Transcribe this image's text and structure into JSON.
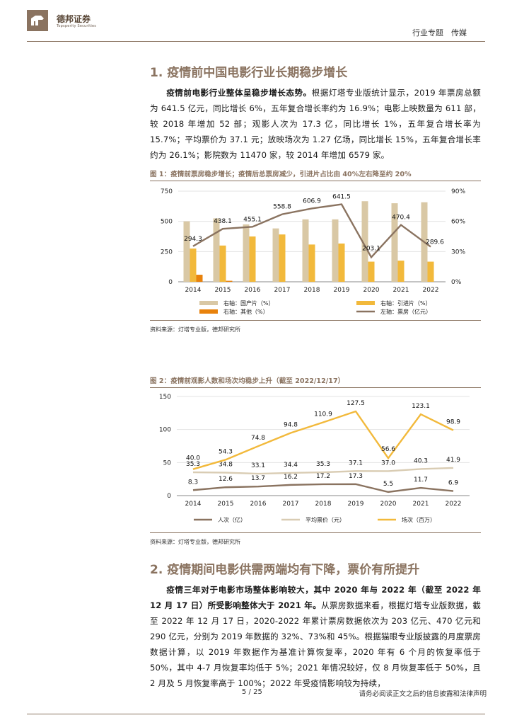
{
  "header": {
    "company_cn": "德邦证券",
    "company_en": "Topsperity Securities",
    "right": "行业专题　传媒"
  },
  "section1": {
    "title": "1. 疫情前中国电影行业长期稳步增长",
    "lead": "疫情前电影行业整体呈稳步增长态势。",
    "body": "根据灯塔专业版统计显示，2019 年票房总额为 641.5 亿元，同比增长 6%，五年复合增长率约为 16.9%；电影上映数量为 611 部，较 2018 年增加 52 部；观影人次为 17.3 亿，同比增长 1%，五年复合增长率为 15.7%；平均票价为 37.1 元；放映场次为 1.27 亿场，同比增长 15%，五年复合增长率约为 26.1%；影院数为 11470 家，较 2014 年增加 6579 家。"
  },
  "figure1": {
    "title": "图 1：疫情前票房稳步增长；疫情后总票房减少，引进片占比由 40%左右降至约 20%",
    "source": "资料来源：灯塔专业版，德邦研究所",
    "legend": [
      "右轴：国产片（%）",
      "右轴：引进片（%）",
      "右轴：其他（%）",
      "左轴：票房（亿元）"
    ]
  },
  "figure2": {
    "title": "图 2：疫情前观影人数和场次均稳步上升（截至 2022/12/17）",
    "source": "资料来源：灯塔专业版，德邦研究所",
    "legend": [
      "人次（亿）",
      "平均票价（元）",
      "场次（百万）"
    ]
  },
  "section2": {
    "title": "2. 疫情期间电影供需两端均有下降，票价有所提升",
    "lead": "疫情三年对于电影市场整体影响较大，其中 2020 年与 2022 年（截至 2022 年 12 月 17 日）所受影响整体大于 2021 年。",
    "body": "从票房数据来看，根据灯塔专业版数据，截至 2022 年 12 月 17 日，2020-2022 年累计票房数据依次为 203 亿元、470 亿元和 290 亿元，分别为 2019 年数据的 32%、73%和 45%。根据猫眼专业版披露的月度票房数据计算，以 2019 年数据作为基准计算恢复率，2020 年有 6 个月的恢复率低于 50%，其中 4-7 月恢复率均低于 5%；2021 年情况较好，仅 8 月恢复率低于 50%，且 2 月及 5 月恢复率高于 100%；2022 年受疫情影响较为持续，"
  },
  "footer": {
    "page": "5 / 25",
    "note": "请务必阅读正文之后的信息披露和法律声明"
  },
  "chart_data": [
    {
      "type": "bar+line",
      "title": "图 1：疫情前票房稳步增长；疫情后总票房减少，引进片占比由 40%左右降至约 20%",
      "categories": [
        "2014",
        "2015",
        "2016",
        "2017",
        "2018",
        "2019",
        "2020",
        "2021",
        "2022"
      ],
      "left_axis": {
        "ticks": [
          "0",
          "250",
          "500",
          "750"
        ],
        "ylim": [
          0,
          750
        ]
      },
      "right_axis": {
        "ticks": [
          "0%",
          "30%",
          "60%",
          "90%"
        ],
        "ylim": [
          0,
          90
        ]
      },
      "series": [
        {
          "name": "右轴：国产片（%）",
          "axis": "right",
          "type": "bar",
          "color": "#d9c8a5",
          "values": [
            60,
            63,
            57,
            53,
            62,
            62,
            80,
            78,
            79
          ]
        },
        {
          "name": "右轴：引进片（%）",
          "axis": "right",
          "type": "bar",
          "color": "#f2b93b",
          "values": [
            33,
            36,
            45,
            47,
            37,
            38,
            20,
            21,
            20
          ]
        },
        {
          "name": "右轴：其他（%）",
          "axis": "right",
          "type": "bar",
          "color": "#e8820c",
          "values": [
            7,
            1,
            0,
            0,
            0,
            0,
            0,
            0,
            0
          ]
        },
        {
          "name": "左轴：票房（亿元）",
          "axis": "left",
          "type": "line",
          "color": "#8a7360",
          "values": [
            294.3,
            438.1,
            455.1,
            558.8,
            606.9,
            641.5,
            203.1,
            470.4,
            289.6
          ],
          "labels": [
            "294.3",
            "438.1",
            "455.1",
            "558.8",
            "606.9",
            "641.5",
            "203.1",
            "470.4",
            "289.6"
          ]
        }
      ]
    },
    {
      "type": "line",
      "title": "图 2：疫情前观影人数和场次均稳步上升（截至 2022/12/17）",
      "categories": [
        "2014",
        "2015",
        "2016",
        "2017",
        "2018",
        "2019",
        "2020",
        "2021",
        "2022"
      ],
      "y_axis": {
        "ticks": [
          "0",
          "50",
          "100",
          "150"
        ],
        "ylim": [
          0,
          150
        ]
      },
      "series": [
        {
          "name": "人次（亿）",
          "color": "#8a7360",
          "values": [
            8.3,
            12.6,
            13.7,
            16.2,
            17.2,
            17.3,
            5.5,
            11.7,
            6.9
          ],
          "labels": [
            "8.3",
            "12.6",
            "13.7",
            "16.2",
            "17.2",
            "17.3",
            "5.5",
            "11.7",
            "6.9"
          ]
        },
        {
          "name": "平均票价（元）",
          "color": "#d9ccb3",
          "values": [
            35.3,
            34.8,
            33.1,
            34.4,
            35.3,
            37.1,
            37.0,
            40.3,
            41.9
          ],
          "labels": [
            "35.3",
            "34.8",
            "33.1",
            "34.4",
            "35.3",
            "37.1",
            "37.0",
            "40.3",
            "41.9"
          ]
        },
        {
          "name": "场次（百万）",
          "color": "#f2b93b",
          "values": [
            40.0,
            54.3,
            74.8,
            94.8,
            110.9,
            127.5,
            56.6,
            123.1,
            98.9
          ],
          "labels": [
            "40.0",
            "54.3",
            "74.8",
            "94.8",
            "110.9",
            "127.5",
            "56.6",
            "123.1",
            "98.9"
          ]
        }
      ]
    }
  ]
}
